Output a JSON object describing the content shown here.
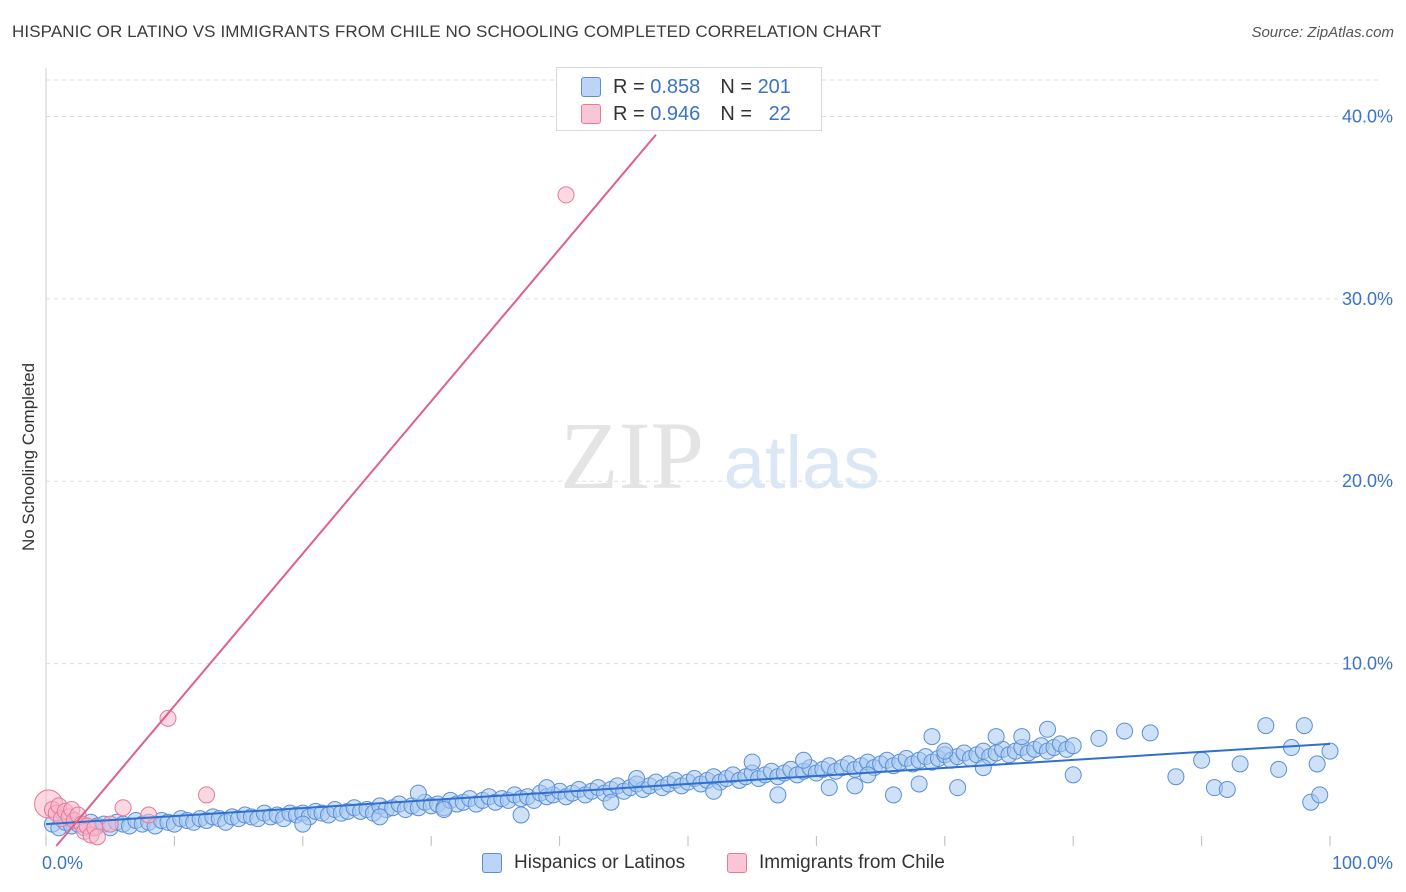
{
  "header": {
    "title": "HISPANIC OR LATINO VS IMMIGRANTS FROM CHILE NO SCHOOLING COMPLETED CORRELATION CHART",
    "source": "Source: ZipAtlas.com"
  },
  "watermark": {
    "zip": "ZIP",
    "atlas": "atlas"
  },
  "legend": {
    "rows": [
      {
        "r_label": "R =",
        "r_value": "0.858",
        "n_label": "N =",
        "n_value": "201"
      },
      {
        "r_label": "R =",
        "r_value": "0.946",
        "n_label": "N =",
        "n_value": "22"
      }
    ]
  },
  "colors": {
    "blue_fill": "#a8c8f0",
    "blue_stroke": "#5a8fd8",
    "blue_line": "#2f6fd0",
    "pink_fill": "#f7b8cb",
    "pink_stroke": "#e8789a",
    "pink_line": "#e0608a",
    "axis_text": "#3a73c9",
    "grid": "#dddddd"
  },
  "chart_data": {
    "type": "scatter",
    "title": "HISPANIC OR LATINO VS IMMIGRANTS FROM CHILE NO SCHOOLING COMPLETED CORRELATION CHART",
    "xlabel": "",
    "ylabel": "No Schooling Completed",
    "xlim": [
      0,
      100
    ],
    "ylim": [
      0,
      42
    ],
    "x_tick_labels": [
      "0.0%",
      "100.0%"
    ],
    "y_ticks": [
      10,
      20,
      30,
      40
    ],
    "y_tick_labels": [
      "10.0%",
      "20.0%",
      "30.0%",
      "40.0%"
    ],
    "grid": true,
    "legend_position": "bottom",
    "series": [
      {
        "name": "Hispanics or Latinos",
        "r": 0.858,
        "n": 201,
        "trendline": {
          "x": [
            0,
            100
          ],
          "y": [
            1.2,
            5.6
          ]
        },
        "points": [
          [
            0.5,
            1.2
          ],
          [
            1,
            1.0
          ],
          [
            1.5,
            1.3
          ],
          [
            2,
            1.1
          ],
          [
            2.5,
            1.2
          ],
          [
            3,
            1.0
          ],
          [
            3.5,
            1.3
          ],
          [
            4,
            1.1
          ],
          [
            4.5,
            1.2
          ],
          [
            5,
            1.0
          ],
          [
            5.5,
            1.3
          ],
          [
            6,
            1.2
          ],
          [
            6.5,
            1.1
          ],
          [
            7,
            1.4
          ],
          [
            7.5,
            1.2
          ],
          [
            8,
            1.3
          ],
          [
            8.5,
            1.1
          ],
          [
            9,
            1.4
          ],
          [
            9.5,
            1.3
          ],
          [
            10,
            1.2
          ],
          [
            10.5,
            1.5
          ],
          [
            11,
            1.4
          ],
          [
            11.5,
            1.3
          ],
          [
            12,
            1.5
          ],
          [
            12.5,
            1.4
          ],
          [
            13,
            1.6
          ],
          [
            13.5,
            1.5
          ],
          [
            14,
            1.3
          ],
          [
            14.5,
            1.6
          ],
          [
            15,
            1.5
          ],
          [
            15.5,
            1.7
          ],
          [
            16,
            1.6
          ],
          [
            16.5,
            1.5
          ],
          [
            17,
            1.8
          ],
          [
            17.5,
            1.6
          ],
          [
            18,
            1.7
          ],
          [
            18.5,
            1.5
          ],
          [
            19,
            1.8
          ],
          [
            19.5,
            1.7
          ],
          [
            20,
            1.8
          ],
          [
            20.5,
            1.6
          ],
          [
            21,
            1.9
          ],
          [
            21.5,
            1.8
          ],
          [
            22,
            1.7
          ],
          [
            22.5,
            2.0
          ],
          [
            23,
            1.8
          ],
          [
            23.5,
            1.9
          ],
          [
            24,
            2.1
          ],
          [
            24.5,
            1.9
          ],
          [
            25,
            2.0
          ],
          [
            25.5,
            1.8
          ],
          [
            26,
            2.2
          ],
          [
            26.5,
            2.0
          ],
          [
            27,
            2.1
          ],
          [
            27.5,
            2.3
          ],
          [
            28,
            2.0
          ],
          [
            28.5,
            2.2
          ],
          [
            29,
            2.1
          ],
          [
            29.5,
            2.4
          ],
          [
            30,
            2.2
          ],
          [
            30.5,
            2.3
          ],
          [
            31,
            2.1
          ],
          [
            31.5,
            2.5
          ],
          [
            32,
            2.3
          ],
          [
            32.5,
            2.4
          ],
          [
            33,
            2.6
          ],
          [
            33.5,
            2.3
          ],
          [
            34,
            2.5
          ],
          [
            34.5,
            2.7
          ],
          [
            35,
            2.4
          ],
          [
            35.5,
            2.6
          ],
          [
            36,
            2.5
          ],
          [
            36.5,
            2.8
          ],
          [
            37,
            2.6
          ],
          [
            37.5,
            2.7
          ],
          [
            38,
            2.5
          ],
          [
            38.5,
            2.9
          ],
          [
            39,
            2.7
          ],
          [
            39.5,
            2.8
          ],
          [
            40,
            3.0
          ],
          [
            40.5,
            2.7
          ],
          [
            41,
            2.9
          ],
          [
            41.5,
            3.1
          ],
          [
            42,
            2.8
          ],
          [
            42.5,
            3.0
          ],
          [
            43,
            3.2
          ],
          [
            43.5,
            2.9
          ],
          [
            44,
            3.1
          ],
          [
            44.5,
            3.3
          ],
          [
            45,
            3.0
          ],
          [
            45.5,
            3.2
          ],
          [
            46,
            3.4
          ],
          [
            46.5,
            3.1
          ],
          [
            47,
            3.3
          ],
          [
            47.5,
            3.5
          ],
          [
            48,
            3.2
          ],
          [
            48.5,
            3.4
          ],
          [
            49,
            3.6
          ],
          [
            49.5,
            3.3
          ],
          [
            50,
            3.5
          ],
          [
            50.5,
            3.7
          ],
          [
            51,
            3.4
          ],
          [
            51.5,
            3.6
          ],
          [
            52,
            3.8
          ],
          [
            52.5,
            3.5
          ],
          [
            53,
            3.7
          ],
          [
            53.5,
            3.9
          ],
          [
            54,
            3.6
          ],
          [
            54.5,
            3.8
          ],
          [
            55,
            4.0
          ],
          [
            55.5,
            3.7
          ],
          [
            56,
            3.9
          ],
          [
            56.5,
            4.1
          ],
          [
            57,
            3.8
          ],
          [
            57.5,
            4.0
          ],
          [
            58,
            4.2
          ],
          [
            58.5,
            3.9
          ],
          [
            59,
            4.1
          ],
          [
            59.5,
            4.3
          ],
          [
            60,
            4.0
          ],
          [
            60.5,
            4.2
          ],
          [
            61,
            4.4
          ],
          [
            61.5,
            4.1
          ],
          [
            62,
            4.3
          ],
          [
            62.5,
            4.5
          ],
          [
            63,
            4.2
          ],
          [
            63.5,
            4.4
          ],
          [
            64,
            4.6
          ],
          [
            64.5,
            4.3
          ],
          [
            65,
            4.5
          ],
          [
            65.5,
            4.7
          ],
          [
            66,
            4.4
          ],
          [
            66.5,
            4.6
          ],
          [
            67,
            4.8
          ],
          [
            67.5,
            4.5
          ],
          [
            68,
            4.7
          ],
          [
            68.5,
            4.9
          ],
          [
            69,
            4.6
          ],
          [
            69.5,
            4.8
          ],
          [
            70,
            5.0
          ],
          [
            70.5,
            4.7
          ],
          [
            71,
            4.9
          ],
          [
            71.5,
            5.1
          ],
          [
            72,
            4.8
          ],
          [
            72.5,
            5.0
          ],
          [
            73,
            5.2
          ],
          [
            73.5,
            4.9
          ],
          [
            74,
            5.1
          ],
          [
            74.5,
            5.3
          ],
          [
            75,
            5.0
          ],
          [
            75.5,
            5.2
          ],
          [
            76,
            5.4
          ],
          [
            76.5,
            5.1
          ],
          [
            77,
            5.3
          ],
          [
            77.5,
            5.5
          ],
          [
            78,
            5.2
          ],
          [
            78.5,
            5.4
          ],
          [
            79,
            5.6
          ],
          [
            79.5,
            5.3
          ],
          [
            80,
            5.5
          ],
          [
            20,
            1.2
          ],
          [
            26,
            1.6
          ],
          [
            29,
            2.9
          ],
          [
            31,
            2.0
          ],
          [
            37,
            1.7
          ],
          [
            39,
            3.2
          ],
          [
            44,
            2.4
          ],
          [
            46,
            3.7
          ],
          [
            52,
            3.0
          ],
          [
            55,
            4.6
          ],
          [
            57,
            2.8
          ],
          [
            59,
            4.7
          ],
          [
            61,
            3.2
          ],
          [
            63,
            3.3
          ],
          [
            64,
            3.9
          ],
          [
            66,
            2.8
          ],
          [
            68,
            3.4
          ],
          [
            69,
            6.0
          ],
          [
            70,
            5.2
          ],
          [
            71,
            3.2
          ],
          [
            73,
            4.3
          ],
          [
            74,
            6.0
          ],
          [
            76,
            6.0
          ],
          [
            78,
            6.4
          ],
          [
            80,
            3.9
          ],
          [
            82,
            5.9
          ],
          [
            84,
            6.3
          ],
          [
            86,
            6.2
          ],
          [
            88,
            3.8
          ],
          [
            90,
            4.7
          ],
          [
            91,
            3.2
          ],
          [
            92,
            3.1
          ],
          [
            93,
            4.5
          ],
          [
            95,
            6.6
          ],
          [
            96,
            4.2
          ],
          [
            97,
            5.4
          ],
          [
            98,
            6.6
          ],
          [
            99,
            4.5
          ],
          [
            100,
            5.2
          ],
          [
            98.5,
            2.4
          ],
          [
            99.2,
            2.8
          ]
        ]
      },
      {
        "name": "Immigrants from Chile",
        "r": 0.946,
        "n": 22,
        "trendline": {
          "x": [
            0.8,
            47.5
          ],
          "y": [
            0.0,
            39.0
          ]
        },
        "points": [
          [
            0.2,
            2.3
          ],
          [
            0.5,
            2.0
          ],
          [
            0.8,
            1.8
          ],
          [
            1.0,
            2.2
          ],
          [
            1.2,
            1.5
          ],
          [
            1.5,
            1.9
          ],
          [
            1.8,
            1.6
          ],
          [
            2.0,
            2.0
          ],
          [
            2.2,
            1.4
          ],
          [
            2.5,
            1.7
          ],
          [
            2.8,
            1.2
          ],
          [
            3.0,
            0.8
          ],
          [
            3.2,
            1.1
          ],
          [
            3.5,
            0.6
          ],
          [
            3.8,
            1.0
          ],
          [
            4.0,
            0.5
          ],
          [
            5.0,
            1.2
          ],
          [
            6.0,
            2.1
          ],
          [
            8.0,
            1.7
          ],
          [
            9.5,
            7.0
          ],
          [
            12.5,
            2.8
          ],
          [
            40.5,
            35.7
          ]
        ]
      }
    ]
  }
}
